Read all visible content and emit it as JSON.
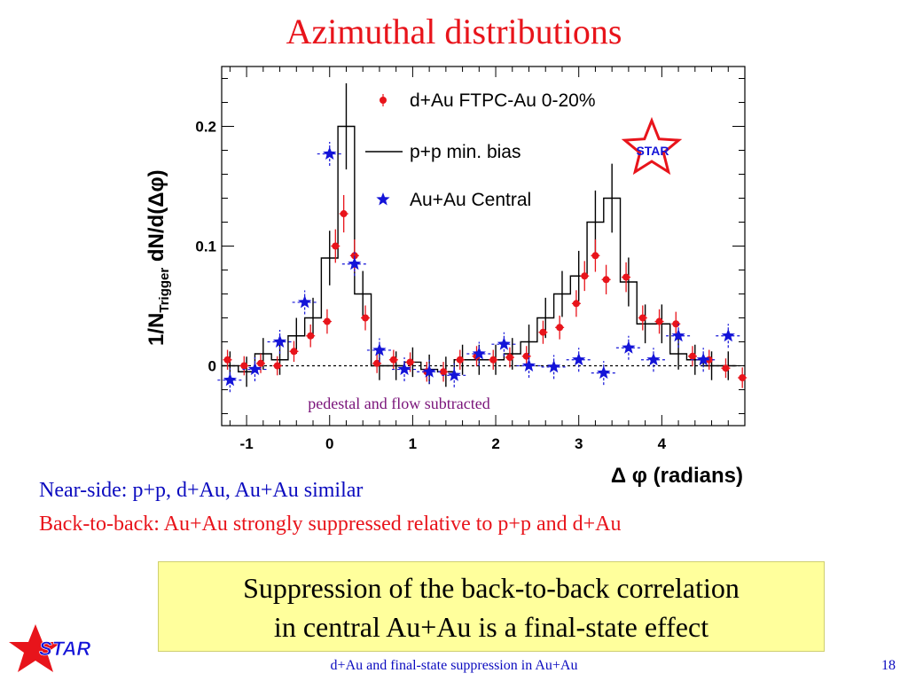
{
  "slide": {
    "title": "Azimuthal distributions",
    "note_near_side": "Near-side: p+p, d+Au, Au+Au similar",
    "note_back_to_back": "Back-to-back: Au+Au strongly suppressed relative to p+p and d+Au",
    "conclusion_line1": "Suppression of the back-to-back correlation",
    "conclusion_line2": "in central Au+Au is a final-state effect",
    "footer": "d+Au and final-state suppression in Au+Au",
    "page_number": "18",
    "logo_text": "STAR"
  },
  "chart_data": {
    "type": "scatter",
    "xlabel": "Δ φ (radians)",
    "ylabel_main": "1/N",
    "ylabel_sub": "Trigger",
    "ylabel_rest": " dN/d(Δφ)",
    "annotation": "pedestal and flow subtracted",
    "logo_text": "STAR",
    "xlim": [
      -1.3,
      5.0
    ],
    "ylim": [
      -0.05,
      0.25
    ],
    "x_ticks": [
      "-1",
      "0",
      "1",
      "2",
      "3",
      "4"
    ],
    "y_ticks": [
      "0",
      "0.1",
      "0.2"
    ],
    "legend_position": "top-right",
    "colors": {
      "dAu": "#e8141b",
      "AuAu": "#1414d8",
      "pp": "#000000",
      "annotation": "#7a147a"
    },
    "series": [
      {
        "name": "d+Au FTPC-Au 0-20%",
        "marker": "circle",
        "x": [
          -1.23,
          -1.03,
          -0.83,
          -0.63,
          -0.43,
          -0.23,
          -0.03,
          0.07,
          0.17,
          0.3,
          0.43,
          0.57,
          0.77,
          0.97,
          1.17,
          1.37,
          1.57,
          1.77,
          1.97,
          2.17,
          2.37,
          2.57,
          2.77,
          2.97,
          3.07,
          3.2,
          3.33,
          3.57,
          3.77,
          3.97,
          4.17,
          4.37,
          4.57,
          4.77,
          4.97
        ],
        "y": [
          0.005,
          0.0,
          0.002,
          0.0,
          0.012,
          0.025,
          0.037,
          0.1,
          0.127,
          0.092,
          0.04,
          0.002,
          0.005,
          0.003,
          -0.005,
          -0.005,
          0.005,
          0.008,
          0.005,
          0.007,
          0.008,
          0.028,
          0.032,
          0.052,
          0.075,
          0.092,
          0.072,
          0.074,
          0.04,
          0.037,
          0.035,
          0.008,
          0.005,
          -0.002,
          -0.01
        ]
      },
      {
        "name": "Au+Au Central",
        "marker": "star",
        "x": [
          -1.2,
          -0.9,
          -0.6,
          -0.3,
          0.0,
          0.3,
          0.6,
          0.9,
          1.2,
          1.5,
          1.8,
          2.1,
          2.4,
          2.7,
          3.0,
          3.3,
          3.6,
          3.9,
          4.2,
          4.5,
          4.8
        ],
        "y": [
          -0.012,
          -0.003,
          0.02,
          0.053,
          0.177,
          0.085,
          0.013,
          -0.003,
          -0.005,
          -0.008,
          0.01,
          0.018,
          0.0,
          -0.001,
          0.005,
          -0.006,
          0.015,
          0.005,
          0.025,
          0.005,
          0.025
        ]
      },
      {
        "name": "p+p min. bias",
        "style": "histogram",
        "bins": [
          -1.3,
          -1.1,
          -0.9,
          -0.7,
          -0.5,
          -0.3,
          -0.1,
          0.1,
          0.3,
          0.5,
          0.7,
          0.9,
          1.1,
          1.3,
          1.5,
          1.7,
          1.9,
          2.1,
          2.3,
          2.5,
          2.7,
          2.9,
          3.1,
          3.3,
          3.5,
          3.7,
          3.9,
          4.1,
          4.3,
          4.5,
          4.7,
          4.9
        ],
        "values": [
          0.0,
          -0.005,
          0.01,
          0.005,
          0.025,
          0.04,
          0.09,
          0.2,
          0.06,
          0.0,
          0.0,
          0.003,
          -0.003,
          -0.005,
          0.005,
          0.005,
          0.005,
          0.01,
          0.02,
          0.04,
          0.06,
          0.075,
          0.12,
          0.14,
          0.07,
          0.035,
          0.035,
          0.01,
          0.005,
          0.0,
          0.0
        ]
      }
    ]
  }
}
